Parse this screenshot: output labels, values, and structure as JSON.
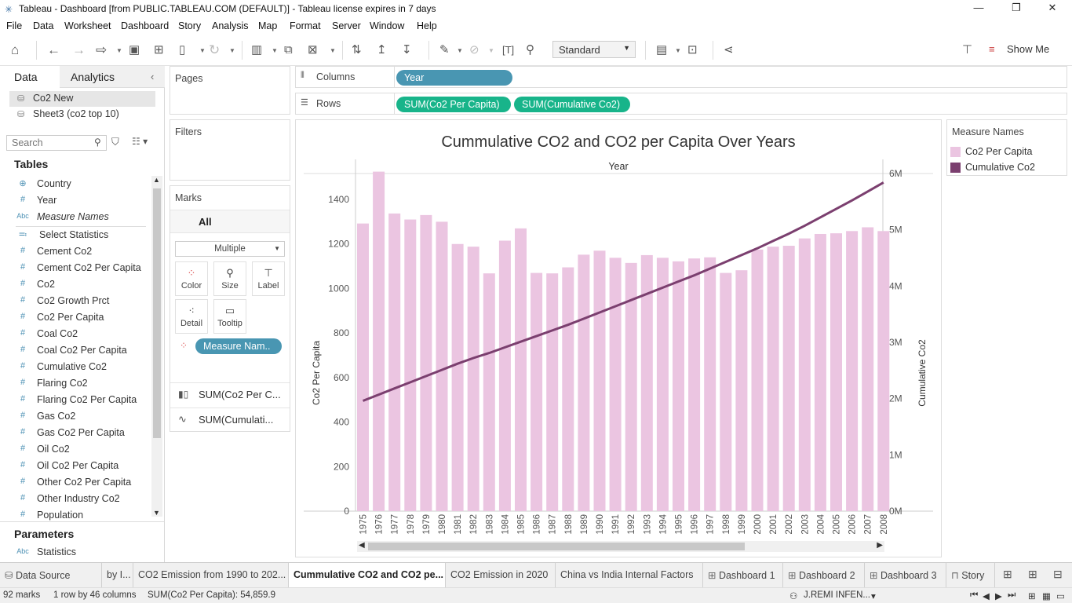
{
  "window": {
    "title": "Tableau - Dashboard [from PUBLIC.TABLEAU.COM (DEFAULT)] - Tableau license expires in 7 days"
  },
  "menu": [
    "File",
    "Data",
    "Worksheet",
    "Dashboard",
    "Story",
    "Analysis",
    "Map",
    "Format",
    "Server",
    "Window",
    "Help"
  ],
  "toolbar": {
    "fit_value": "Standard",
    "show_me": "Show Me"
  },
  "data_pane": {
    "tabs": [
      "Data",
      "Analytics"
    ],
    "sources": [
      "Co2 New",
      "Sheet3 (co2 top 10)"
    ],
    "search_placeholder": "Search",
    "tables_header": "Tables",
    "fields": [
      {
        "name": "Country",
        "type": "geo"
      },
      {
        "name": "Year",
        "type": "#"
      },
      {
        "name": "Measure Names",
        "type": "Abc"
      },
      {
        "name": "Select Statistics",
        "type": "param"
      },
      {
        "name": "Cement Co2",
        "type": "#"
      },
      {
        "name": "Cement Co2 Per Capita",
        "type": "#"
      },
      {
        "name": "Co2",
        "type": "#"
      },
      {
        "name": "Co2 Growth Prct",
        "type": "#"
      },
      {
        "name": "Co2 Per Capita",
        "type": "#"
      },
      {
        "name": "Coal Co2",
        "type": "#"
      },
      {
        "name": "Coal Co2 Per Capita",
        "type": "#"
      },
      {
        "name": "Cumulative Co2",
        "type": "#"
      },
      {
        "name": "Flaring Co2",
        "type": "#"
      },
      {
        "name": "Flaring Co2 Per Capita",
        "type": "#"
      },
      {
        "name": "Gas Co2",
        "type": "#"
      },
      {
        "name": "Gas Co2 Per Capita",
        "type": "#"
      },
      {
        "name": "Oil Co2",
        "type": "#"
      },
      {
        "name": "Oil Co2 Per Capita",
        "type": "#"
      },
      {
        "name": "Other Co2 Per Capita",
        "type": "#"
      },
      {
        "name": "Other Industry Co2",
        "type": "#"
      },
      {
        "name": "Population",
        "type": "#"
      }
    ],
    "parameters_header": "Parameters",
    "parameters": [
      {
        "name": "Statistics",
        "type": "Abc"
      }
    ]
  },
  "cards": {
    "pages": "Pages",
    "filters": "Filters",
    "marks": "Marks",
    "marks_all": "All",
    "mark_type": "Multiple",
    "mark_buttons": [
      "Color",
      "Size",
      "Label",
      "Detail",
      "Tooltip"
    ],
    "color_pill": "Measure Nam..",
    "mark_rows": [
      "SUM(Co2 Per C...",
      "SUM(Cumulati..."
    ]
  },
  "shelves": {
    "columns_label": "Columns",
    "rows_label": "Rows",
    "columns_pills": [
      "Year"
    ],
    "rows_pills": [
      "SUM(Co2 Per Capita)",
      "SUM(Cumulative Co2)"
    ]
  },
  "legend": {
    "title": "Measure Names",
    "items": [
      {
        "label": "Co2 Per Capita",
        "color": "#ebc5e1"
      },
      {
        "label": "Cumulative Co2",
        "color": "#7b3f6f"
      }
    ]
  },
  "chart_data": {
    "type": "bar",
    "title": "Cummulative CO2 and CO2 per Capita Over Years",
    "header": "Year",
    "ylabel": "Co2 Per Capita",
    "y2label": "Cumulative Co2",
    "ylim": [
      0,
      1580
    ],
    "y2lim": [
      0,
      6.25
    ],
    "y_ticks": [
      "0",
      "200",
      "400",
      "600",
      "800",
      "1000",
      "1200",
      "1400"
    ],
    "y2_ticks": [
      "0M",
      "1M",
      "2M",
      "3M",
      "4M",
      "5M",
      "6M"
    ],
    "categories": [
      "1975",
      "1976",
      "1977",
      "1978",
      "1979",
      "1980",
      "1981",
      "1982",
      "1983",
      "1984",
      "1985",
      "1986",
      "1987",
      "1988",
      "1989",
      "1990",
      "1991",
      "1992",
      "1993",
      "1994",
      "1995",
      "1996",
      "1997",
      "1998",
      "1999",
      "2000",
      "2001",
      "2002",
      "2003",
      "2004",
      "2005",
      "2006",
      "2007",
      "2008"
    ],
    "series": [
      {
        "name": "Co2 Per Capita",
        "kind": "bar",
        "color": "#ebc5e1",
        "values": [
          1292,
          1525,
          1337,
          1310,
          1330,
          1300,
          1200,
          1188,
          1068,
          1215,
          1270,
          1070,
          1068,
          1095,
          1152,
          1170,
          1138,
          1115,
          1150,
          1138,
          1122,
          1135,
          1140,
          1070,
          1082,
          1175,
          1188,
          1192,
          1225,
          1245,
          1248,
          1258,
          1275,
          1258
        ]
      },
      {
        "name": "Cumulative Co2",
        "kind": "line",
        "color": "#7b3f6f",
        "values": [
          1.96,
          2.07,
          2.18,
          2.29,
          2.4,
          2.51,
          2.62,
          2.72,
          2.81,
          2.91,
          3.01,
          3.11,
          3.21,
          3.31,
          3.42,
          3.53,
          3.64,
          3.75,
          3.86,
          3.97,
          4.08,
          4.19,
          4.31,
          4.43,
          4.55,
          4.67,
          4.8,
          4.93,
          5.07,
          5.22,
          5.37,
          5.52,
          5.68,
          5.84
        ]
      }
    ]
  },
  "sheet_tabs": [
    {
      "label": "Data Source",
      "icon": "datasource"
    },
    {
      "label": "by I...",
      "icon": ""
    },
    {
      "label": "CO2 Emission from 1990 to 202...",
      "icon": ""
    },
    {
      "label": "Cummulative CO2 and CO2 pe...",
      "icon": "",
      "active": true
    },
    {
      "label": "CO2 Emission in 2020",
      "icon": ""
    },
    {
      "label": "China vs India Internal Factors",
      "icon": ""
    },
    {
      "label": "Dashboard 1",
      "icon": "dashboard"
    },
    {
      "label": "Dashboard 2",
      "icon": "dashboard"
    },
    {
      "label": "Dashboard 3",
      "icon": "dashboard"
    },
    {
      "label": "Story",
      "icon": "story"
    }
  ],
  "status": {
    "marks": "92 marks",
    "dims": "1 row by 46 columns",
    "sum": "SUM(Co2 Per Capita): 54,859.9",
    "user": "J.REMI INFEN..."
  }
}
